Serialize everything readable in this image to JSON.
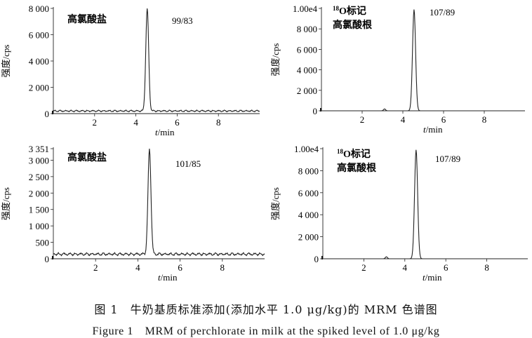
{
  "chart_data": [
    {
      "type": "line",
      "panel_label": "高氯酸盐",
      "panel_label_prefix": "",
      "transition": "99/83",
      "xlabel": "t/min",
      "ylabel": "强度/cps",
      "xlim": [
        0,
        10
      ],
      "ylim": [
        0,
        8000
      ],
      "xticks": [
        2,
        4,
        6,
        8
      ],
      "xtick_labels": [
        "2",
        "4",
        "6",
        "8"
      ],
      "yticks": [
        0,
        2000,
        4000,
        6000,
        8000
      ],
      "ytick_labels": [
        "0",
        "2 000",
        "4 000",
        "6 000",
        "8 000"
      ],
      "grid": false,
      "baseline": 200,
      "noise": 70,
      "peaks": [
        {
          "center": 4.55,
          "height": 8000,
          "width": 0.07
        }
      ],
      "series": [
        {
          "values_source": "baseline + peaks"
        }
      ]
    },
    {
      "type": "line",
      "panel_label": "标记",
      "panel_label_prefix": "18O",
      "panel_label_line2": "高氯酸根",
      "transition": "107/89",
      "xlabel": "t/min",
      "ylabel": "强度/cps",
      "xlim": [
        0,
        10
      ],
      "ylim": [
        0,
        10000
      ],
      "xticks": [
        2,
        4,
        6,
        8
      ],
      "xtick_labels": [
        "2",
        "4",
        "6",
        "8"
      ],
      "yticks": [
        0,
        2000,
        4000,
        6000,
        8000,
        10000
      ],
      "ytick_labels": [
        "0",
        "2 000",
        "4 000",
        "6 000",
        "8 000",
        "1.00e4"
      ],
      "grid": false,
      "baseline": 0,
      "noise": 0,
      "peaks": [
        {
          "center": 4.55,
          "height": 9900,
          "width": 0.075
        },
        {
          "center": 3.1,
          "height": 180,
          "width": 0.05
        }
      ],
      "series": [
        {
          "values_source": "baseline + peaks"
        }
      ]
    },
    {
      "type": "line",
      "panel_label": "高氯酸盐",
      "panel_label_prefix": "",
      "transition": "101/85",
      "xlabel": "t/min",
      "ylabel": "强度/cps",
      "xlim": [
        0,
        10
      ],
      "ylim": [
        0,
        3351
      ],
      "xticks": [
        2,
        4,
        6,
        8
      ],
      "xtick_labels": [
        "2",
        "4",
        "6",
        "8"
      ],
      "yticks": [
        0,
        500,
        1000,
        1500,
        2000,
        2500,
        3000,
        3351
      ],
      "ytick_labels": [
        "0",
        "500",
        "1 000",
        "1 500",
        "2 000",
        "2 500",
        "3 000",
        "3 351"
      ],
      "grid": false,
      "baseline": 140,
      "noise": 45,
      "peaks": [
        {
          "center": 4.55,
          "height": 3351,
          "width": 0.07
        }
      ],
      "series": [
        {
          "values_source": "baseline + peaks"
        }
      ]
    },
    {
      "type": "line",
      "panel_label": "标记",
      "panel_label_prefix": "18O",
      "panel_label_line2": "高氯酸根",
      "transition": "107/89",
      "xlabel": "t/min",
      "ylabel": "强度/cps",
      "xlim": [
        0,
        10
      ],
      "ylim": [
        0,
        10000
      ],
      "xticks": [
        2,
        4,
        6,
        8
      ],
      "xtick_labels": [
        "2",
        "4",
        "6",
        "8"
      ],
      "yticks": [
        0,
        2000,
        4000,
        6000,
        8000,
        10000
      ],
      "ytick_labels": [
        "0",
        "2 000",
        "4 000",
        "6 000",
        "8 000",
        "1.00e4"
      ],
      "grid": false,
      "baseline": 0,
      "noise": 0,
      "peaks": [
        {
          "center": 4.55,
          "height": 9900,
          "width": 0.075
        },
        {
          "center": 3.1,
          "height": 180,
          "width": 0.05
        }
      ],
      "series": [
        {
          "values_source": "baseline + peaks"
        }
      ]
    }
  ],
  "caption_zh": "图 1　牛奶基质标准添加(添加水平 1.0 μg/kg)的 MRM 色谱图",
  "caption_en": "Figure 1　MRM of perchlorate in milk at the spiked level of 1.0 μg/kg"
}
